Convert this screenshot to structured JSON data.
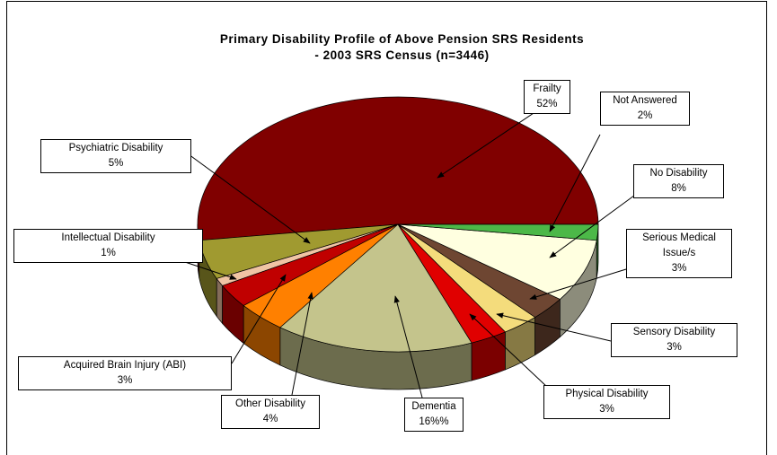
{
  "chart_data": {
    "type": "pie3d",
    "title": "Primary Disability Profile of Above Pension SRS Residents",
    "subtitle": "- 2003 SRS Census (n=3446)",
    "categories": [
      "Frailty",
      "Psychiatric Disability",
      "Intellectual Disability",
      "Acquired Brain Injury (ABI)",
      "Other Disability",
      "Dementia",
      "Physical Disability",
      "Sensory Disability",
      "Serious Medical Issue/s",
      "No Disability",
      "Not Answered"
    ],
    "values": [
      52,
      5,
      1,
      3,
      4,
      16,
      3,
      3,
      3,
      8,
      2
    ],
    "value_labels": [
      "52%",
      "5%",
      "1%",
      "3%",
      "4%",
      "16%%",
      "3%",
      "3%",
      "3%",
      "8%",
      "2%"
    ],
    "colors": [
      "#800000",
      "#a09a30",
      "#f0c4a4",
      "#c00000",
      "#ff8000",
      "#c4c48c",
      "#e00000",
      "#f4dc7c",
      "#6e4632",
      "#ffffe0",
      "#4cb848"
    ]
  }
}
